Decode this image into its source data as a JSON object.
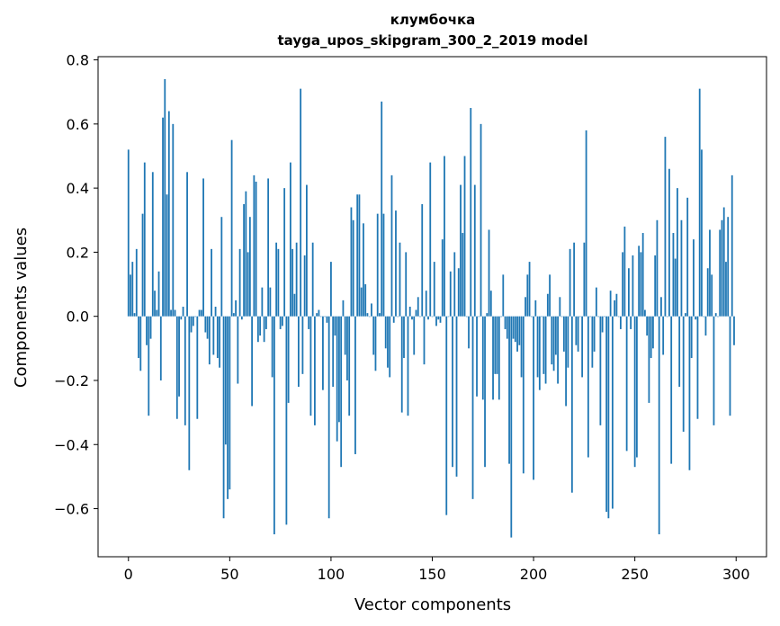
{
  "chart_data": {
    "type": "bar",
    "title": "клумбочка",
    "subtitle": "tayga_upos_skipgram_300_2_2019 model",
    "xlabel": "Vector components",
    "ylabel": "Components values",
    "xlim": [
      -15,
      315
    ],
    "ylim": [
      -0.75,
      0.81
    ],
    "x_ticks": [
      0,
      50,
      100,
      150,
      200,
      250,
      300
    ],
    "x_tick_labels": [
      "0",
      "50",
      "100",
      "150",
      "200",
      "250",
      "300"
    ],
    "y_ticks": [
      -0.6,
      -0.4,
      -0.2,
      0.0,
      0.2,
      0.4,
      0.6,
      0.8
    ],
    "y_tick_labels": [
      "−0.6",
      "−0.4",
      "−0.2",
      "0.0",
      "0.2",
      "0.4",
      "0.6",
      "0.8"
    ],
    "grid": false,
    "bar_color": "#1f77b4",
    "values": [
      0.52,
      0.13,
      0.17,
      0.01,
      0.21,
      -0.13,
      -0.17,
      0.32,
      0.48,
      -0.09,
      -0.31,
      -0.07,
      0.45,
      0.08,
      0.02,
      0.14,
      -0.2,
      0.62,
      0.74,
      0.38,
      0.64,
      0.02,
      0.6,
      0.02,
      -0.32,
      -0.25,
      -0.01,
      0.03,
      -0.34,
      0.45,
      -0.48,
      -0.05,
      -0.03,
      0.0,
      -0.32,
      0.02,
      0.02,
      0.43,
      -0.05,
      -0.07,
      -0.15,
      0.21,
      -0.12,
      0.03,
      -0.13,
      -0.16,
      0.31,
      -0.63,
      -0.4,
      -0.57,
      -0.54,
      0.55,
      0.01,
      0.05,
      -0.21,
      0.21,
      -0.01,
      0.35,
      0.39,
      0.2,
      0.31,
      -0.28,
      0.44,
      0.42,
      -0.08,
      -0.06,
      0.09,
      -0.08,
      -0.04,
      0.43,
      0.09,
      -0.19,
      -0.68,
      0.23,
      0.21,
      -0.04,
      -0.03,
      0.4,
      -0.65,
      -0.27,
      0.48,
      0.21,
      0.07,
      0.23,
      -0.22,
      0.71,
      -0.18,
      0.19,
      0.41,
      -0.04,
      -0.31,
      0.23,
      -0.34,
      0.01,
      0.02,
      0.0,
      -0.23,
      0.0,
      -0.02,
      -0.63,
      0.17,
      -0.22,
      -0.06,
      -0.39,
      -0.33,
      -0.47,
      0.05,
      -0.12,
      -0.2,
      -0.31,
      0.34,
      0.3,
      -0.43,
      0.38,
      0.38,
      0.09,
      0.29,
      0.1,
      0.01,
      0.0,
      0.04,
      -0.12,
      -0.17,
      0.32,
      0.01,
      0.67,
      0.32,
      -0.1,
      -0.16,
      -0.19,
      0.44,
      -0.02,
      0.33,
      0.0,
      0.23,
      -0.3,
      -0.13,
      0.2,
      -0.31,
      0.03,
      -0.01,
      -0.12,
      0.02,
      0.06,
      0.0,
      0.35,
      -0.15,
      0.08,
      -0.01,
      0.48,
      0.0,
      0.17,
      -0.03,
      -0.01,
      -0.02,
      0.24,
      0.5,
      -0.62,
      0.0,
      0.14,
      -0.47,
      0.2,
      -0.5,
      0.15,
      0.41,
      0.26,
      0.5,
      0.0,
      -0.1,
      0.65,
      -0.57,
      0.41,
      -0.25,
      0.0,
      0.6,
      -0.26,
      -0.47,
      0.01,
      0.27,
      0.08,
      -0.26,
      -0.18,
      -0.18,
      -0.26,
      0.0,
      0.13,
      -0.04,
      -0.07,
      -0.46,
      -0.69,
      -0.07,
      -0.08,
      -0.11,
      -0.09,
      -0.19,
      -0.49,
      0.06,
      0.13,
      0.17,
      0.0,
      -0.51,
      0.05,
      -0.19,
      -0.23,
      0.0,
      -0.18,
      -0.21,
      0.07,
      0.13,
      -0.15,
      -0.17,
      -0.12,
      -0.21,
      0.06,
      0.0,
      -0.11,
      -0.28,
      -0.16,
      0.21,
      -0.55,
      0.23,
      -0.09,
      -0.11,
      0.0,
      -0.19,
      0.23,
      0.58,
      -0.44,
      0.0,
      -0.16,
      -0.11,
      0.09,
      0.0,
      -0.34,
      -0.05,
      0.0,
      -0.61,
      -0.63,
      0.08,
      -0.6,
      0.05,
      0.07,
      0.0,
      -0.04,
      0.2,
      0.28,
      -0.42,
      0.15,
      -0.04,
      0.19,
      -0.47,
      -0.44,
      0.22,
      0.2,
      0.26,
      0.02,
      -0.06,
      -0.27,
      -0.13,
      -0.1,
      0.19,
      0.3,
      -0.68,
      0.06,
      -0.12,
      0.56,
      0.0,
      0.46,
      -0.46,
      0.26,
      0.18,
      0.4,
      -0.22,
      0.3,
      -0.36,
      0.01,
      0.37,
      -0.48,
      -0.13,
      0.24,
      -0.01,
      -0.32,
      0.71,
      0.52,
      0.0,
      -0.06,
      0.15,
      0.27,
      0.13,
      -0.34,
      0.01,
      0.0,
      0.27,
      0.3,
      0.34,
      0.17,
      0.31,
      -0.31,
      0.44,
      -0.09
    ]
  }
}
